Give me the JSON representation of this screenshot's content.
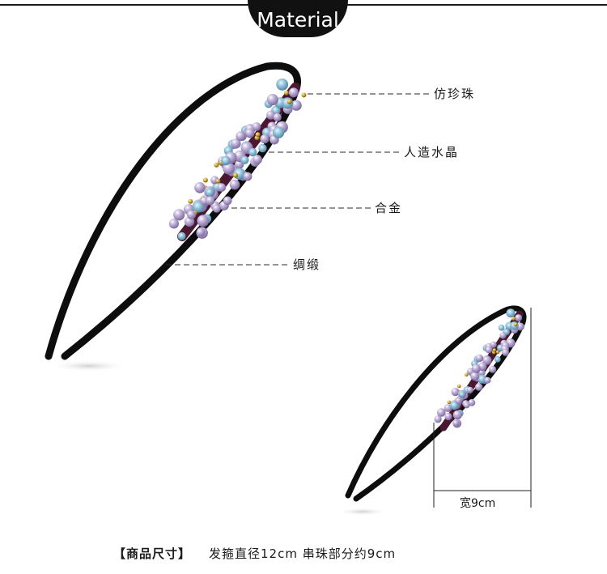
{
  "header": {
    "badge": "Material"
  },
  "callouts": {
    "pearl": "仿珍珠",
    "crystal": "人造水晶",
    "alloy": "合金",
    "satin": "绸缎"
  },
  "dimension": {
    "width_label": "宽9cm"
  },
  "footer": {
    "title": "【商品尺寸】",
    "spec": "发箍直径12cm 串珠部分约9cm"
  },
  "colors": {
    "band": "#0d0d0d",
    "pearl": "#a592be",
    "crystal": "#8fc0d8",
    "gold": "#c49a2a",
    "garnet": "#4a1830"
  }
}
